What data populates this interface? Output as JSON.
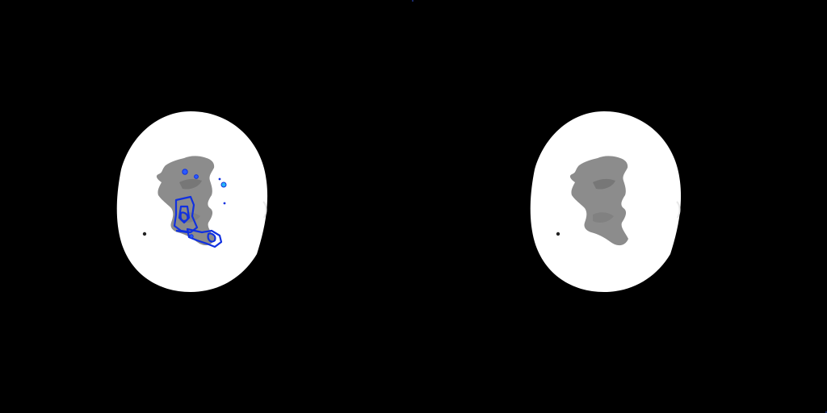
{
  "viewer": {
    "layout": "side-by-side",
    "panes": [
      {
        "role": "annotated-slice",
        "has_overlay": true
      },
      {
        "role": "reference-slice",
        "has_overlay": false
      }
    ]
  },
  "colors": {
    "background": "#000000",
    "bone": "#ffffff",
    "marrow": "#8c8c8c",
    "marrow_dark": "#6e6e6e",
    "contour": "#1030e0",
    "contour_fill": "#2a5bff",
    "highlight_point": "#29b6f6"
  }
}
